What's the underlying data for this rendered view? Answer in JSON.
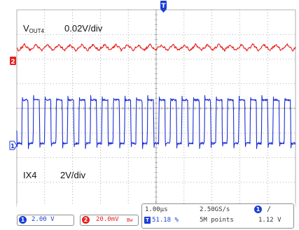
{
  "annotations": {
    "vout_main": "V",
    "vout_sub": "OUT4",
    "vout_scale": "0.02V/div",
    "ix_name": "IX4",
    "ix_scale": "2V/div"
  },
  "markers": {
    "trigger_position": "T",
    "ch1": "1",
    "ch2": "2"
  },
  "status": {
    "ch1_badge": "1",
    "ch1_scale": "2.00 V",
    "ch2_badge": "2",
    "ch2_scale": "20.0mV",
    "ch2_bw_mark": "Bw",
    "time_div": "1.00µs",
    "trigger_badge": "T",
    "trigger_pos": "51.18 %",
    "sample_rate": "2.50GS/s",
    "record_length": "5M points",
    "trig_source_badge": "1",
    "trig_slope": "/",
    "trig_level": "1.12 V"
  },
  "colors": {
    "ch1": "#1c2fd6",
    "ch2": "#e8201e",
    "grid": "#9a9a9a",
    "trigger_marker": "#1c3fd6"
  }
}
